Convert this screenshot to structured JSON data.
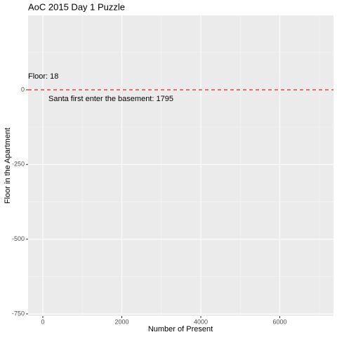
{
  "chart_data": {
    "type": "line",
    "title": "AoC 2015 Day 1 Puzzle",
    "xlabel": "Number of Present",
    "ylabel": "Floor in the Apartment",
    "xlim": [
      -373,
      7360
    ],
    "ylim": [
      -757,
      249
    ],
    "xticks": [
      0,
      2000,
      4000,
      6000
    ],
    "yticks": [
      0,
      -250,
      -500,
      -750
    ],
    "x_minor_ticks": [
      1000,
      3000,
      5000,
      7000
    ],
    "y_minor_ticks": [
      125,
      -125,
      -375,
      -625
    ],
    "grid": true,
    "hline": {
      "value": 0,
      "color": "#ff0000",
      "dashed": true
    },
    "annotations": [
      "Floor: 18",
      "Santa first enter the basement: 1795"
    ]
  }
}
